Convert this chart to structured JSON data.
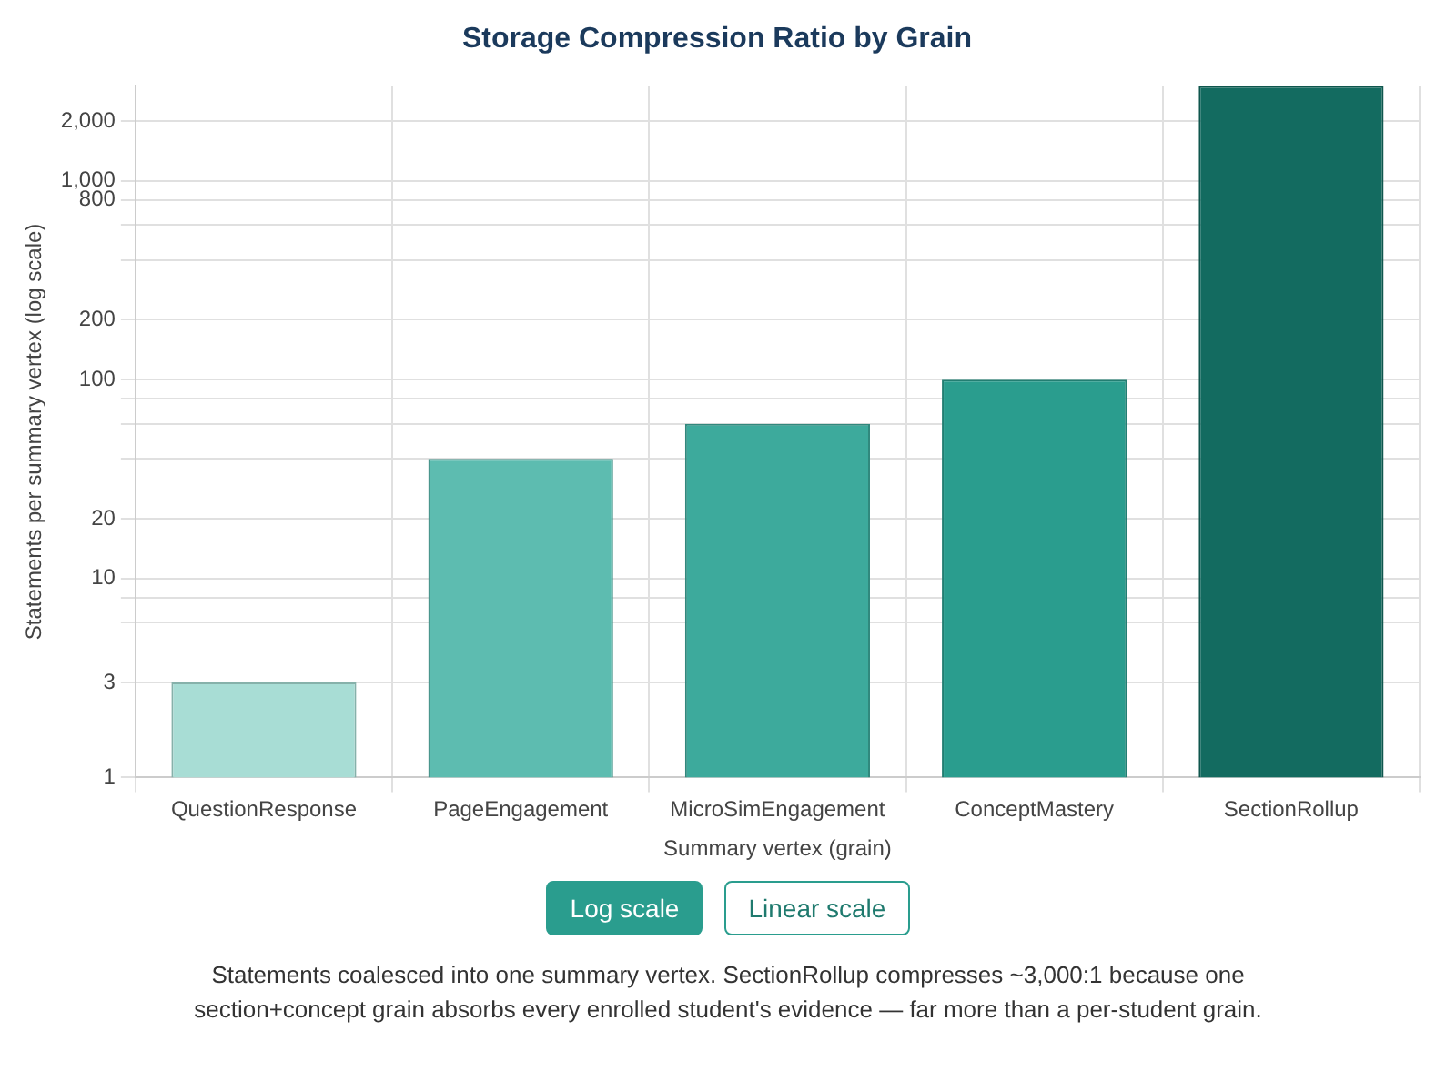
{
  "chart_data": {
    "type": "bar",
    "title": "Storage Compression Ratio by Grain",
    "xlabel": "Summary vertex (grain)",
    "ylabel": "Statements per summary vertex (log scale)",
    "categories": [
      "QuestionResponse",
      "PageEngagement",
      "MicroSimEngagement",
      "ConceptMastery",
      "SectionRollup"
    ],
    "values": [
      3,
      40,
      60,
      100,
      3000
    ],
    "colors": [
      "#a8ddd5",
      "#5dbcb0",
      "#3daa9c",
      "#2a9d8e",
      "#136b60"
    ],
    "log": true,
    "ylim": [
      1,
      3000
    ],
    "yticks": [
      1,
      3,
      {
        "value": 6,
        "label": null
      },
      {
        "value": 8,
        "label": null
      },
      10,
      20,
      {
        "value": 40,
        "label": null
      },
      {
        "value": 60,
        "label": null
      },
      {
        "value": 80,
        "label": null
      },
      100,
      200,
      {
        "value": 400,
        "label": null
      },
      {
        "value": 600,
        "label": null
      },
      800,
      {
        "value": 1000,
        "label": "1,000"
      },
      {
        "value": 2000,
        "label": "2,000"
      }
    ],
    "grid": true,
    "legend": false,
    "annotations": [
      "Log scale",
      "Linear scale",
      "Statements coalesced into one summary vertex. SectionRollup compresses ~3,000:1 because one section+concept grain absorbs every enrolled student's evidence — far more than a per-student grain."
    ]
  }
}
